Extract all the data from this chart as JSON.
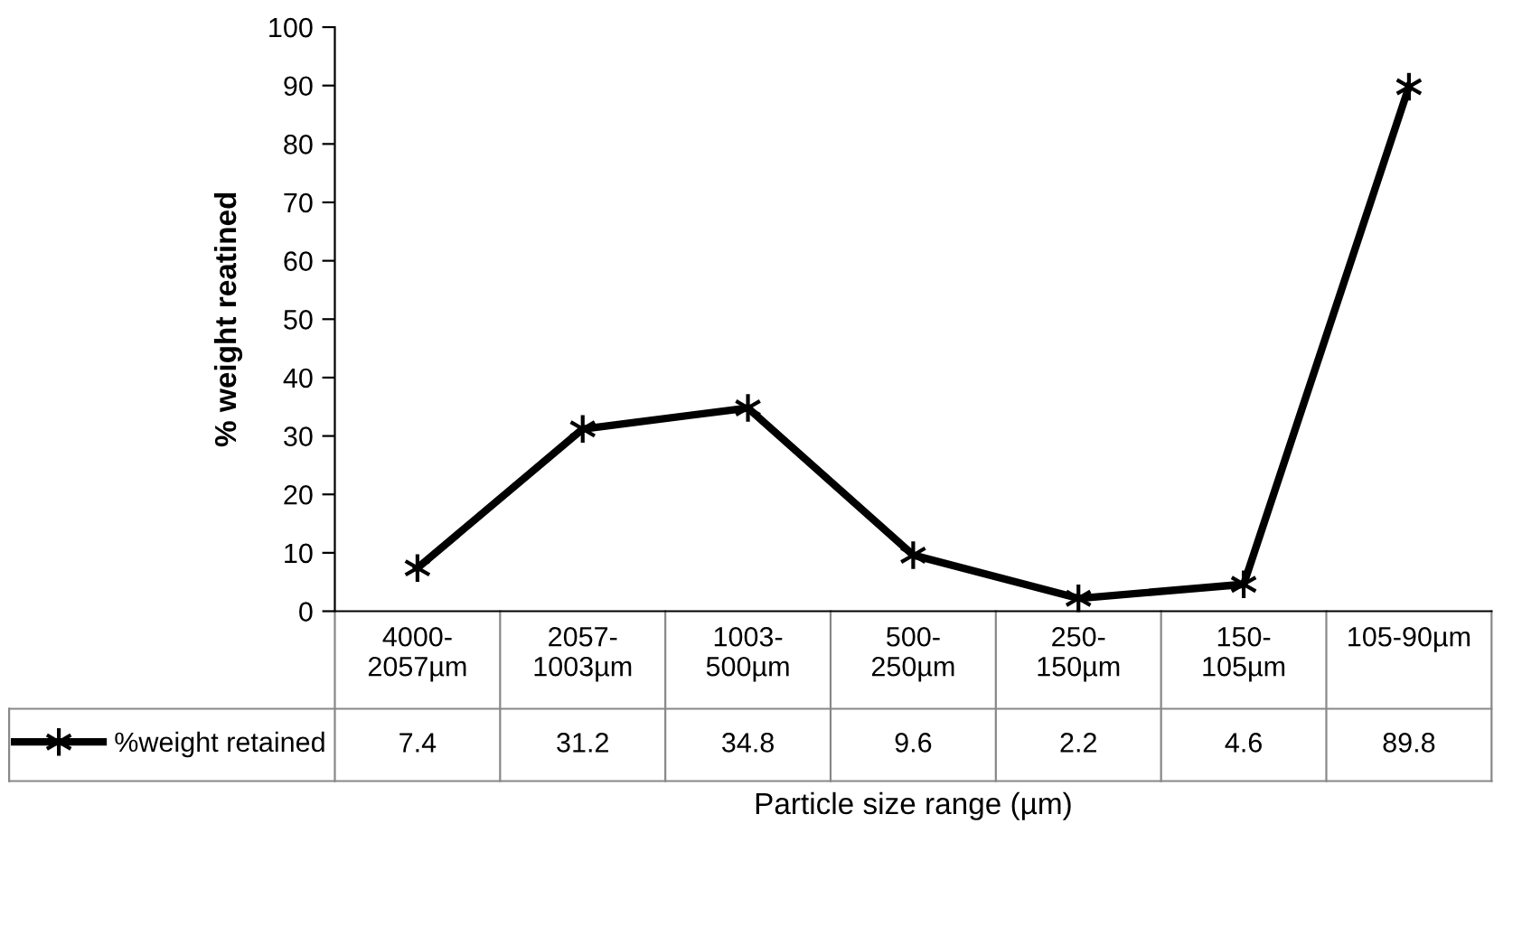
{
  "chart_data": {
    "type": "line",
    "ylabel": "% weight reatined",
    "xlabel": "Particle size range (µm)",
    "categories": [
      "4000-\n2057µm",
      "2057-\n1003µm",
      "1003-\n500µm",
      "500-\n250µm",
      "250-\n150µm",
      "150-\n105µm",
      "105-90µm"
    ],
    "series": [
      {
        "name": "%weight retained",
        "color": "#000000",
        "values": [
          7.4,
          31.2,
          34.8,
          9.6,
          2.2,
          4.6,
          89.8
        ]
      }
    ],
    "ylim": [
      0,
      100
    ],
    "yticks": [
      0,
      10,
      20,
      30,
      40,
      50,
      60,
      70,
      80,
      90,
      100
    ],
    "grid": false,
    "legend": "bottom left",
    "marker": "cross",
    "line_style": "solid",
    "data_labels": true
  }
}
